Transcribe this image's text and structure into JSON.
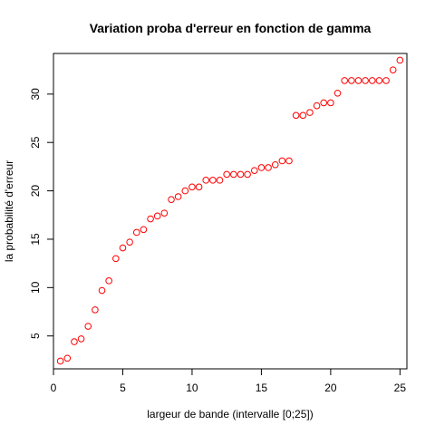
{
  "chart_data": {
    "type": "scatter",
    "title": "Variation proba d'erreur en fonction de gamma",
    "xlabel": "largeur de bande (intervalle [0;25])",
    "ylabel": "la probabilité d'erreur",
    "xlim": [
      0,
      25.5
    ],
    "ylim": [
      1.6,
      34.2
    ],
    "x_ticks": [
      0,
      5,
      10,
      15,
      20,
      25
    ],
    "y_ticks": [
      5,
      10,
      15,
      20,
      25,
      30
    ],
    "grid": false,
    "point_color": "#ff0000",
    "x": [
      0.5,
      1,
      1.5,
      2,
      2.5,
      3,
      3.5,
      4,
      4.5,
      5,
      5.5,
      6,
      6.5,
      7,
      7.5,
      8,
      8.5,
      9,
      9.5,
      10,
      10.5,
      11,
      11.5,
      12,
      12.5,
      13,
      13.5,
      14,
      14.5,
      15,
      15.5,
      16,
      16.5,
      17,
      17.5,
      18,
      18.5,
      19,
      19.5,
      20,
      20.5,
      21,
      21.5,
      22,
      22.5,
      23,
      23.5,
      24,
      24.5,
      25
    ],
    "y": [
      2.4,
      2.7,
      4.4,
      4.7,
      6.0,
      7.7,
      9.7,
      10.7,
      13.0,
      14.1,
      14.7,
      15.7,
      16.0,
      17.1,
      17.4,
      17.7,
      19.1,
      19.4,
      20.0,
      20.4,
      20.4,
      21.1,
      21.1,
      21.1,
      21.7,
      21.7,
      21.7,
      21.7,
      22.1,
      22.4,
      22.4,
      22.7,
      23.1,
      23.1,
      27.8,
      27.8,
      28.1,
      28.8,
      29.1,
      29.1,
      30.1,
      31.4,
      31.4,
      31.4,
      31.4,
      31.4,
      31.4,
      31.4,
      32.5,
      33.5
    ]
  }
}
